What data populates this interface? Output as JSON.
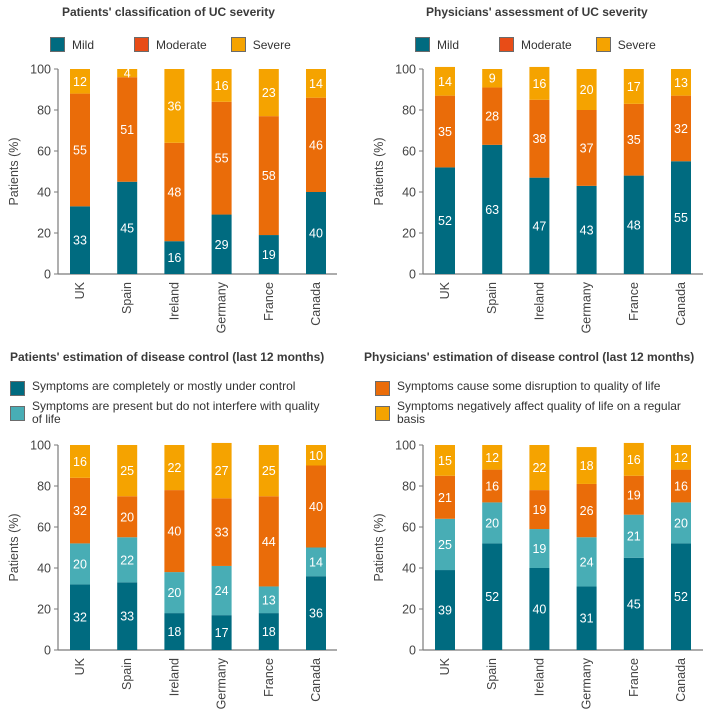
{
  "colors": {
    "mild": "#006b80",
    "moderate": "#ea6c09",
    "moderate_legend": "#e84c17",
    "severe": "#f5a300",
    "controlled": "#006b80",
    "present_no_interfere": "#48adb5",
    "some_disruption": "#ea6c09",
    "negatively_affect": "#f5a300"
  },
  "top_legend": {
    "mild": "Mild",
    "moderate": "Moderate",
    "severe": "Severe"
  },
  "bottom_legend": {
    "controlled": "Symptoms are completely or mostly under control",
    "present_no_interfere": "Symptoms are present but do not interfere with quality of life",
    "some_disruption": "Symptoms cause some disruption to quality of life",
    "negatively_affect": "Symptoms negatively affect quality of life on a regular basis"
  },
  "chart_data": [
    {
      "type": "bar",
      "stacked": true,
      "title": "Patients' classification of UC severity",
      "xlabel": "",
      "ylabel": "Patients (%)",
      "ylim": [
        0,
        100
      ],
      "yticks": [
        0,
        20,
        40,
        60,
        80,
        100
      ],
      "categories": [
        "UK",
        "Spain",
        "Ireland",
        "Germany",
        "France",
        "Canada"
      ],
      "series": [
        {
          "name": "Mild",
          "color_key": "mild",
          "values": [
            33,
            45,
            16,
            29,
            19,
            40
          ]
        },
        {
          "name": "Moderate",
          "color_key": "moderate",
          "values": [
            55,
            51,
            48,
            55,
            58,
            46
          ]
        },
        {
          "name": "Severe",
          "color_key": "severe",
          "values": [
            12,
            4,
            36,
            16,
            23,
            14
          ]
        }
      ],
      "legend": "top"
    },
    {
      "type": "bar",
      "stacked": true,
      "title": "Physicians' assessment of UC severity",
      "xlabel": "",
      "ylabel": "Patients (%)",
      "ylim": [
        0,
        100
      ],
      "yticks": [
        0,
        20,
        40,
        60,
        80,
        100
      ],
      "categories": [
        "UK",
        "Spain",
        "Ireland",
        "Germany",
        "France",
        "Canada"
      ],
      "series": [
        {
          "name": "Mild",
          "color_key": "mild",
          "values": [
            52,
            63,
            47,
            43,
            48,
            55
          ]
        },
        {
          "name": "Moderate",
          "color_key": "moderate",
          "values": [
            35,
            28,
            38,
            37,
            35,
            32
          ]
        },
        {
          "name": "Severe",
          "color_key": "severe",
          "values": [
            14,
            9,
            16,
            20,
            17,
            13
          ]
        }
      ],
      "legend": "top"
    },
    {
      "type": "bar",
      "stacked": true,
      "title": "Patients' estimation of disease control (last 12 months)",
      "xlabel": "",
      "ylabel": "Patients (%)",
      "ylim": [
        0,
        100
      ],
      "yticks": [
        0,
        20,
        40,
        60,
        80,
        100
      ],
      "categories": [
        "UK",
        "Spain",
        "Ireland",
        "Germany",
        "France",
        "Canada"
      ],
      "series": [
        {
          "name": "Symptoms are completely or mostly under control",
          "color_key": "controlled",
          "values": [
            32,
            33,
            18,
            17,
            18,
            36
          ]
        },
        {
          "name": "Symptoms are present but do not interfere with quality of life",
          "color_key": "present_no_interfere",
          "values": [
            20,
            22,
            20,
            24,
            13,
            14
          ]
        },
        {
          "name": "Symptoms cause some disruption to quality of life",
          "color_key": "some_disruption",
          "values": [
            32,
            20,
            40,
            33,
            44,
            40
          ]
        },
        {
          "name": "Symptoms negatively affect quality of life on a regular basis",
          "color_key": "negatively_affect",
          "values": [
            16,
            25,
            22,
            27,
            25,
            10
          ]
        }
      ],
      "legend": "top"
    },
    {
      "type": "bar",
      "stacked": true,
      "title": "Physicians' estimation of disease control (last 12 months)",
      "xlabel": "",
      "ylabel": "Patients (%)",
      "ylim": [
        0,
        100
      ],
      "yticks": [
        0,
        20,
        40,
        60,
        80,
        100
      ],
      "categories": [
        "UK",
        "Spain",
        "Ireland",
        "Germany",
        "France",
        "Canada"
      ],
      "series": [
        {
          "name": "Symptoms are completely or mostly under control",
          "color_key": "controlled",
          "values": [
            39,
            52,
            40,
            31,
            45,
            52
          ]
        },
        {
          "name": "Symptoms are present but do not interfere with quality of life",
          "color_key": "present_no_interfere",
          "values": [
            25,
            20,
            19,
            24,
            21,
            20
          ]
        },
        {
          "name": "Symptoms cause some disruption to quality of life",
          "color_key": "some_disruption",
          "values": [
            21,
            16,
            19,
            26,
            19,
            16
          ]
        },
        {
          "name": "Symptoms negatively affect quality of life on a regular basis",
          "color_key": "negatively_affect",
          "values": [
            15,
            12,
            22,
            18,
            16,
            12
          ]
        }
      ],
      "legend": "top"
    }
  ]
}
